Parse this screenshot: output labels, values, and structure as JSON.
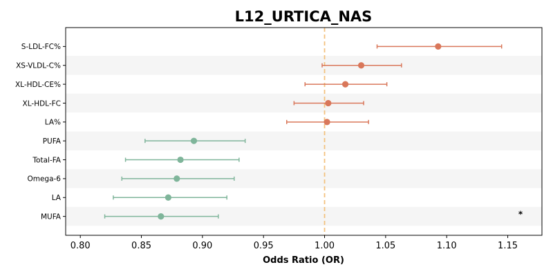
{
  "chart_data": {
    "type": "forest",
    "title": "L12_URTICA_NAS",
    "xlabel": "Odds Ratio (OR)",
    "xlim": [
      0.788,
      1.178
    ],
    "xticks": [
      "0.80",
      "0.85",
      "0.90",
      "0.95",
      "1.00",
      "1.05",
      "1.10",
      "1.15"
    ],
    "reference_line": 1.0,
    "grid": false,
    "rows": [
      {
        "label": "S-LDL-FC%",
        "or": 1.093,
        "lo": 1.043,
        "hi": 1.145,
        "direction": "positive"
      },
      {
        "label": "XS-VLDL-C%",
        "or": 1.03,
        "lo": 0.998,
        "hi": 1.063,
        "direction": "positive"
      },
      {
        "label": "XL-HDL-CE%",
        "or": 1.017,
        "lo": 0.984,
        "hi": 1.051,
        "direction": "positive"
      },
      {
        "label": "XL-HDL-FC",
        "or": 1.003,
        "lo": 0.975,
        "hi": 1.032,
        "direction": "positive"
      },
      {
        "label": "LA%",
        "or": 1.002,
        "lo": 0.969,
        "hi": 1.036,
        "direction": "positive"
      },
      {
        "label": "PUFA",
        "or": 0.893,
        "lo": 0.853,
        "hi": 0.935,
        "direction": "negative"
      },
      {
        "label": "Total-FA",
        "or": 0.882,
        "lo": 0.837,
        "hi": 0.93,
        "direction": "negative"
      },
      {
        "label": "Omega-6",
        "or": 0.879,
        "lo": 0.834,
        "hi": 0.926,
        "direction": "negative"
      },
      {
        "label": "LA",
        "or": 0.872,
        "lo": 0.827,
        "hi": 0.92,
        "direction": "negative"
      },
      {
        "label": "MUFA",
        "or": 0.866,
        "lo": 0.82,
        "hi": 0.913,
        "direction": "negative",
        "annotation": "*"
      }
    ],
    "colors": {
      "positive": "#d9775a",
      "negative": "#7fb59a",
      "reference": "#f3c27e",
      "band": "#f5f5f5"
    }
  }
}
